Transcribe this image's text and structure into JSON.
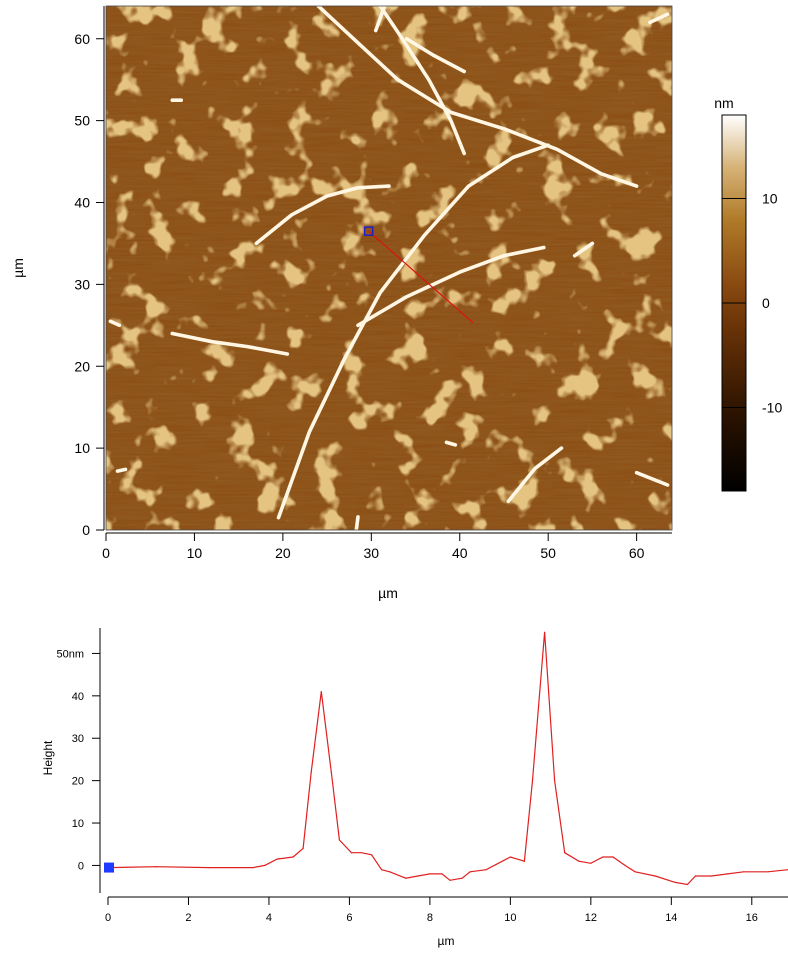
{
  "chart_data": [
    {
      "type": "heatmap",
      "xlabel": "µm",
      "ylabel": "µm",
      "xlim": [
        0,
        64
      ],
      "ylim": [
        0,
        64
      ],
      "x_ticks": [
        "0",
        "10",
        "20",
        "30",
        "40",
        "50",
        "60"
      ],
      "y_ticks": [
        "0",
        "10",
        "20",
        "30",
        "40",
        "50",
        "60"
      ],
      "colorbar": {
        "unit": "nm",
        "range": [
          -18,
          18
        ],
        "ticks": [
          "10",
          "0",
          "-10"
        ],
        "tick_values": [
          10,
          0,
          -10
        ],
        "colors": {
          "low": "#000000",
          "mid": "#8a4a10",
          "high": "#ffffff"
        }
      },
      "fibers": [
        {
          "x": [
            19.5,
            23,
            27,
            31,
            36,
            41,
            46,
            50
          ],
          "y": [
            1.5,
            12,
            21,
            29,
            36,
            42,
            45.5,
            47
          ]
        },
        {
          "x": [
            28.5,
            34,
            40,
            45,
            49.5
          ],
          "y": [
            25,
            28.5,
            31.5,
            33.5,
            34.5
          ]
        },
        {
          "x": [
            17,
            21,
            25,
            28.5,
            32
          ],
          "y": [
            35,
            38.5,
            40.8,
            41.8,
            42
          ]
        },
        {
          "x": [
            24,
            28,
            33,
            39,
            45,
            51,
            56,
            60
          ],
          "y": [
            64,
            60,
            55,
            51,
            49,
            46.5,
            43.5,
            42
          ]
        },
        {
          "x": [
            31,
            33.5,
            36.5,
            39,
            40.5
          ],
          "y": [
            64,
            60,
            55,
            50,
            46
          ]
        },
        {
          "x": [
            34,
            37,
            40.5
          ],
          "y": [
            60,
            58,
            56
          ]
        },
        {
          "x": [
            30.5,
            31.5
          ],
          "y": [
            61,
            64
          ]
        },
        {
          "x": [
            7.5,
            12,
            16,
            20.5
          ],
          "y": [
            24,
            23,
            22.4,
            21.5
          ]
        },
        {
          "x": [
            45.5,
            48.5,
            51.5
          ],
          "y": [
            3.5,
            7.5,
            10
          ]
        },
        {
          "x": [
            60,
            63.5
          ],
          "y": [
            7,
            5.5
          ]
        },
        {
          "x": [
            53,
            55
          ],
          "y": [
            33.5,
            35
          ]
        },
        {
          "x": [
            28.3,
            28.5
          ],
          "y": [
            0,
            1.6
          ]
        },
        {
          "x": [
            61.5,
            63.5
          ],
          "y": [
            62,
            63
          ]
        },
        {
          "x": [
            0.5,
            1.5
          ],
          "y": [
            25.5,
            25
          ]
        },
        {
          "x": [
            1.3,
            2.2
          ],
          "y": [
            7.2,
            7.4
          ]
        },
        {
          "x": [
            38.5,
            39.5
          ],
          "y": [
            10.7,
            10.4
          ]
        },
        {
          "x": [
            7.5,
            8.5
          ],
          "y": [
            52.5,
            52.5
          ]
        }
      ],
      "profile_line": {
        "start": [
          29.7,
          36.5
        ],
        "end": [
          41.5,
          25.3
        ],
        "color": "#e01010"
      },
      "cursor": {
        "x": 29.7,
        "y": 36.5,
        "color": "#2020c8"
      }
    },
    {
      "type": "line",
      "xlabel": "µm",
      "ylabel": "Height",
      "xlim": [
        0,
        16.9
      ],
      "ylim": [
        -6.5,
        56
      ],
      "x_ticks": [
        "0",
        "2",
        "4",
        "6",
        "8",
        "10",
        "12",
        "14",
        "16"
      ],
      "y_ticks": [
        "0",
        "10",
        "20",
        "30",
        "40",
        "50nm"
      ],
      "series": [
        {
          "color": "#e02020",
          "x": [
            0,
            1.2,
            2.5,
            3.6,
            3.9,
            4.2,
            4.6,
            4.85,
            5.05,
            5.3,
            5.55,
            5.75,
            6.05,
            6.3,
            6.55,
            6.8,
            7.0,
            7.4,
            7.7,
            8.0,
            8.3,
            8.5,
            8.8,
            9.0,
            9.4,
            9.7,
            10.0,
            10.35,
            10.55,
            10.85,
            11.1,
            11.35,
            11.7,
            12.0,
            12.3,
            12.55,
            12.85,
            13.1,
            13.6,
            14.1,
            14.4,
            14.6,
            15.0,
            15.4,
            15.8,
            16.4,
            16.9
          ],
          "y": [
            -0.5,
            -0.3,
            -0.5,
            -0.5,
            0,
            1.5,
            2,
            4,
            22,
            41,
            22,
            6,
            3,
            3,
            2.5,
            -1,
            -1.5,
            -3,
            -2.5,
            -2,
            -2,
            -3.5,
            -3,
            -1.5,
            -1,
            0.5,
            2,
            1,
            20,
            55,
            20,
            3,
            1,
            0.5,
            2,
            2,
            0,
            -1.5,
            -2.5,
            -4,
            -4.5,
            -2.5,
            -2.5,
            -2,
            -1.5,
            -1.5,
            -1
          ]
        }
      ],
      "marker": {
        "x": 0,
        "y": -0.5,
        "color": "#1f3bff"
      }
    }
  ]
}
